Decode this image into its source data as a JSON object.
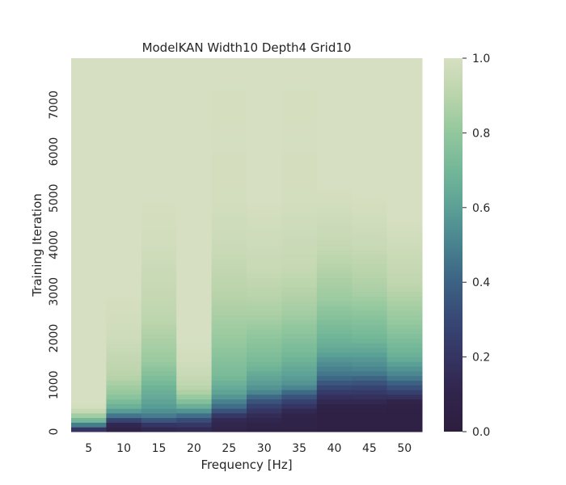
{
  "chart_data": {
    "type": "heatmap",
    "title": "ModelKAN Width10 Depth4 Grid10",
    "xlabel": "Frequency [Hz]",
    "ylabel": "Training Iteration",
    "categories": [
      5,
      10,
      15,
      20,
      25,
      30,
      35,
      40,
      45,
      50
    ],
    "ylim": [
      0,
      8000
    ],
    "y_ticks": [
      0,
      1000,
      2000,
      3000,
      4000,
      5000,
      6000,
      7000
    ],
    "colorbar": {
      "min": 0.0,
      "max": 1.0,
      "ticks": [
        "0.0",
        "0.2",
        "0.4",
        "0.6",
        "0.8",
        "1.0"
      ]
    },
    "colormap": "cubehelix-teal (dark #2d1e3e to light #d6dfc1)",
    "grid": false,
    "description_of_values": "each column: value vs training iteration checkpoints (0-8000)",
    "series": [
      {
        "name": "5",
        "values": [
          [
            0,
            0.05
          ],
          [
            100,
            0.35
          ],
          [
            200,
            0.62
          ],
          [
            300,
            0.78
          ],
          [
            400,
            0.9
          ],
          [
            500,
            0.98
          ],
          [
            600,
            1.0
          ],
          [
            8000,
            1.0
          ]
        ]
      },
      {
        "name": "10",
        "values": [
          [
            0,
            0.05
          ],
          [
            200,
            0.15
          ],
          [
            300,
            0.4
          ],
          [
            500,
            0.65
          ],
          [
            800,
            0.8
          ],
          [
            1200,
            0.9
          ],
          [
            2000,
            0.97
          ],
          [
            3000,
            1.0
          ],
          [
            8000,
            1.0
          ]
        ]
      },
      {
        "name": "15",
        "values": [
          [
            0,
            0.08
          ],
          [
            200,
            0.25
          ],
          [
            300,
            0.45
          ],
          [
            500,
            0.58
          ],
          [
            1000,
            0.7
          ],
          [
            1500,
            0.82
          ],
          [
            2500,
            0.92
          ],
          [
            4000,
            0.98
          ],
          [
            5000,
            1.0
          ],
          [
            8000,
            1.0
          ]
        ]
      },
      {
        "name": "20",
        "values": [
          [
            0,
            0.1
          ],
          [
            200,
            0.25
          ],
          [
            400,
            0.5
          ],
          [
            600,
            0.72
          ],
          [
            800,
            0.85
          ],
          [
            1000,
            0.92
          ],
          [
            1500,
            0.98
          ],
          [
            2000,
            1.0
          ],
          [
            8000,
            1.0
          ]
        ]
      },
      {
        "name": "25",
        "values": [
          [
            0,
            0.08
          ],
          [
            300,
            0.15
          ],
          [
            500,
            0.4
          ],
          [
            800,
            0.6
          ],
          [
            1200,
            0.72
          ],
          [
            2000,
            0.82
          ],
          [
            3000,
            0.9
          ],
          [
            4000,
            0.96
          ],
          [
            5000,
            0.99
          ],
          [
            8000,
            1.0
          ]
        ]
      },
      {
        "name": "30",
        "values": [
          [
            0,
            0.06
          ],
          [
            300,
            0.12
          ],
          [
            600,
            0.3
          ],
          [
            900,
            0.55
          ],
          [
            1500,
            0.72
          ],
          [
            2500,
            0.86
          ],
          [
            3500,
            0.95
          ],
          [
            5000,
            1.0
          ],
          [
            8000,
            1.0
          ]
        ]
      },
      {
        "name": "35",
        "values": [
          [
            0,
            0.06
          ],
          [
            400,
            0.1
          ],
          [
            700,
            0.3
          ],
          [
            1000,
            0.55
          ],
          [
            1600,
            0.7
          ],
          [
            2500,
            0.84
          ],
          [
            3500,
            0.94
          ],
          [
            5000,
            0.99
          ],
          [
            8000,
            1.0
          ]
        ]
      },
      {
        "name": "40",
        "values": [
          [
            0,
            0.05
          ],
          [
            500,
            0.06
          ],
          [
            800,
            0.2
          ],
          [
            1200,
            0.45
          ],
          [
            1800,
            0.65
          ],
          [
            2800,
            0.82
          ],
          [
            4000,
            0.94
          ],
          [
            5200,
            1.0
          ],
          [
            8000,
            1.0
          ]
        ]
      },
      {
        "name": "45",
        "values": [
          [
            0,
            0.05
          ],
          [
            500,
            0.06
          ],
          [
            900,
            0.25
          ],
          [
            1300,
            0.5
          ],
          [
            2000,
            0.7
          ],
          [
            3000,
            0.86
          ],
          [
            4000,
            0.95
          ],
          [
            5000,
            1.0
          ],
          [
            8000,
            1.0
          ]
        ]
      },
      {
        "name": "50",
        "values": [
          [
            0,
            0.05
          ],
          [
            600,
            0.06
          ],
          [
            900,
            0.3
          ],
          [
            1200,
            0.5
          ],
          [
            1600,
            0.66
          ],
          [
            2300,
            0.8
          ],
          [
            3200,
            0.92
          ],
          [
            4500,
            1.0
          ],
          [
            8000,
            1.0
          ]
        ]
      }
    ]
  }
}
